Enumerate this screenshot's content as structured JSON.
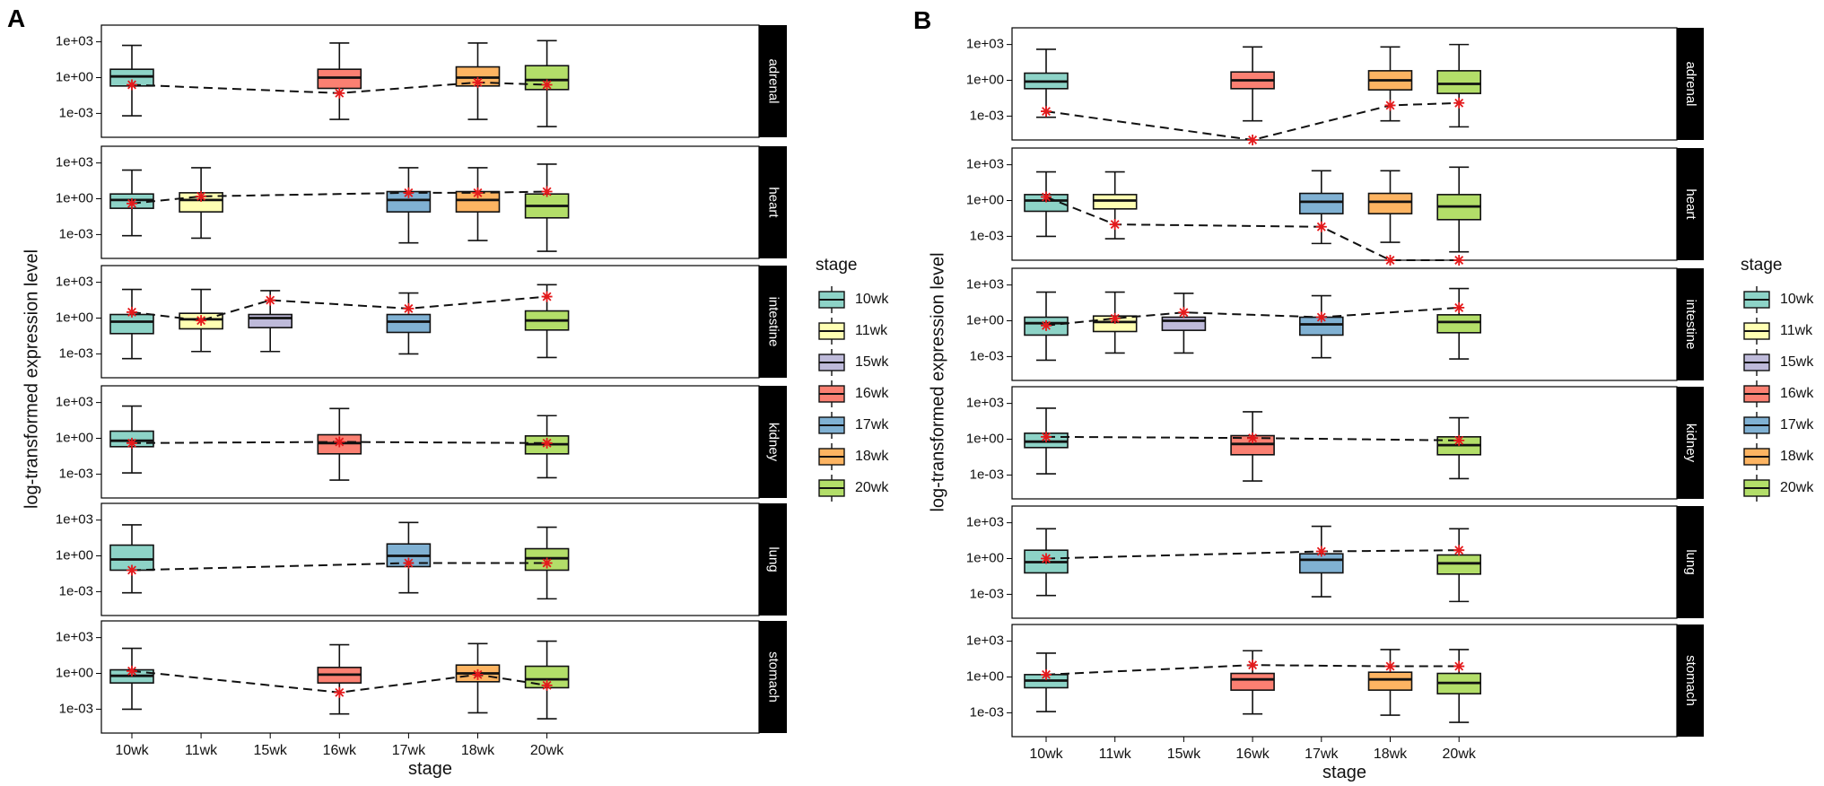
{
  "chart_data": {
    "type": "boxplot",
    "stage_levels": [
      "10wk",
      "11wk",
      "15wk",
      "16wk",
      "17wk",
      "18wk",
      "20wk"
    ],
    "colors": {
      "10wk": "#8dd3c7",
      "11wk": "#ffffb3",
      "15wk": "#bebada",
      "16wk": "#fb8072",
      "17wk": "#80b1d3",
      "18wk": "#fdb462",
      "20wk": "#b3de69"
    },
    "marker_color": "#e41a1c",
    "y_scale": "log10",
    "ylim_log10": [
      -5,
      4.4
    ],
    "y_ticks": [
      {
        "log": 3,
        "label": "1e+03"
      },
      {
        "log": 0,
        "label": "1e+00"
      },
      {
        "log": -3,
        "label": "1e-03"
      }
    ],
    "panels": [
      {
        "letter": "A",
        "xlabel": "stage",
        "ylabel": "log-transformed expression level",
        "legend_title": "stage",
        "facets": [
          {
            "name": "adrenal",
            "boxes": [
              {
                "stage": "10wk",
                "whislo": -3.2,
                "q1": -0.7,
                "med": 0.1,
                "q3": 0.7,
                "whishi": 2.7
              },
              {
                "stage": "16wk",
                "whislo": -3.5,
                "q1": -0.9,
                "med": 0.0,
                "q3": 0.7,
                "whishi": 2.9
              },
              {
                "stage": "18wk",
                "whislo": -3.5,
                "q1": -0.7,
                "med": 0.0,
                "q3": 0.9,
                "whishi": 2.9
              },
              {
                "stage": "20wk",
                "whislo": -4.1,
                "q1": -1.0,
                "med": -0.2,
                "q3": 1.0,
                "whishi": 3.1
              }
            ],
            "trend": [
              {
                "stage": "10wk",
                "value": -0.6
              },
              {
                "stage": "16wk",
                "value": -1.3
              },
              {
                "stage": "18wk",
                "value": -0.4
              },
              {
                "stage": "20wk",
                "value": -0.6
              }
            ]
          },
          {
            "name": "heart",
            "boxes": [
              {
                "stage": "10wk",
                "whislo": -3.1,
                "q1": -0.8,
                "med": -0.1,
                "q3": 0.4,
                "whishi": 2.4
              },
              {
                "stage": "11wk",
                "whislo": -3.3,
                "q1": -1.1,
                "med": -0.1,
                "q3": 0.5,
                "whishi": 2.6
              },
              {
                "stage": "17wk",
                "whislo": -3.7,
                "q1": -1.1,
                "med": -0.1,
                "q3": 0.6,
                "whishi": 2.6
              },
              {
                "stage": "18wk",
                "whislo": -3.5,
                "q1": -1.1,
                "med": -0.1,
                "q3": 0.6,
                "whishi": 2.6
              },
              {
                "stage": "20wk",
                "whislo": -4.4,
                "q1": -1.6,
                "med": -0.6,
                "q3": 0.4,
                "whishi": 2.9
              }
            ],
            "trend": [
              {
                "stage": "10wk",
                "value": -0.4
              },
              {
                "stage": "11wk",
                "value": 0.2
              },
              {
                "stage": "17wk",
                "value": 0.5
              },
              {
                "stage": "18wk",
                "value": 0.5
              },
              {
                "stage": "20wk",
                "value": 0.6
              }
            ]
          },
          {
            "name": "intestine",
            "boxes": [
              {
                "stage": "10wk",
                "whislo": -3.4,
                "q1": -1.3,
                "med": -0.3,
                "q3": 0.3,
                "whishi": 2.4
              },
              {
                "stage": "11wk",
                "whislo": -2.8,
                "q1": -0.9,
                "med": -0.1,
                "q3": 0.4,
                "whishi": 2.4
              },
              {
                "stage": "15wk",
                "whislo": -2.8,
                "q1": -0.8,
                "med": 0.0,
                "q3": 0.3,
                "whishi": 2.3
              },
              {
                "stage": "17wk",
                "whislo": -3.0,
                "q1": -1.2,
                "med": -0.3,
                "q3": 0.3,
                "whishi": 2.1
              },
              {
                "stage": "20wk",
                "whislo": -3.3,
                "q1": -1.0,
                "med": -0.2,
                "q3": 0.6,
                "whishi": 2.8
              }
            ],
            "trend": [
              {
                "stage": "10wk",
                "value": 0.5
              },
              {
                "stage": "11wk",
                "value": -0.2
              },
              {
                "stage": "15wk",
                "value": 1.5
              },
              {
                "stage": "17wk",
                "value": 0.8
              },
              {
                "stage": "20wk",
                "value": 1.8
              }
            ]
          },
          {
            "name": "kidney",
            "boxes": [
              {
                "stage": "10wk",
                "whislo": -2.9,
                "q1": -0.7,
                "med": -0.2,
                "q3": 0.6,
                "whishi": 2.7
              },
              {
                "stage": "16wk",
                "whislo": -3.5,
                "q1": -1.3,
                "med": -0.4,
                "q3": 0.3,
                "whishi": 2.5
              },
              {
                "stage": "20wk",
                "whislo": -3.3,
                "q1": -1.3,
                "med": -0.5,
                "q3": 0.2,
                "whishi": 1.9
              }
            ],
            "trend": [
              {
                "stage": "10wk",
                "value": -0.4
              },
              {
                "stage": "16wk",
                "value": -0.3
              },
              {
                "stage": "20wk",
                "value": -0.4
              }
            ]
          },
          {
            "name": "lung",
            "boxes": [
              {
                "stage": "10wk",
                "whislo": -3.1,
                "q1": -1.2,
                "med": -0.3,
                "q3": 0.9,
                "whishi": 2.6
              },
              {
                "stage": "17wk",
                "whislo": -3.1,
                "q1": -0.9,
                "med": 0.0,
                "q3": 1.0,
                "whishi": 2.8
              },
              {
                "stage": "20wk",
                "whislo": -3.6,
                "q1": -1.2,
                "med": -0.2,
                "q3": 0.6,
                "whishi": 2.4
              }
            ],
            "trend": [
              {
                "stage": "10wk",
                "value": -1.2
              },
              {
                "stage": "17wk",
                "value": -0.6
              },
              {
                "stage": "20wk",
                "value": -0.6
              }
            ]
          },
          {
            "name": "stomach",
            "boxes": [
              {
                "stage": "10wk",
                "whislo": -3.0,
                "q1": -0.8,
                "med": -0.2,
                "q3": 0.3,
                "whishi": 2.1
              },
              {
                "stage": "16wk",
                "whislo": -3.4,
                "q1": -0.8,
                "med": -0.1,
                "q3": 0.5,
                "whishi": 2.4
              },
              {
                "stage": "18wk",
                "whislo": -3.3,
                "q1": -0.7,
                "med": 0.0,
                "q3": 0.7,
                "whishi": 2.5
              },
              {
                "stage": "20wk",
                "whislo": -3.8,
                "q1": -1.2,
                "med": -0.5,
                "q3": 0.6,
                "whishi": 2.7
              }
            ],
            "trend": [
              {
                "stage": "10wk",
                "value": 0.2
              },
              {
                "stage": "16wk",
                "value": -1.6
              },
              {
                "stage": "18wk",
                "value": -0.1
              },
              {
                "stage": "20wk",
                "value": -1.0
              }
            ]
          }
        ]
      },
      {
        "letter": "B",
        "xlabel": "stage",
        "ylabel": "log-transformed expression level",
        "legend_title": "stage",
        "facets": [
          {
            "name": "adrenal",
            "boxes": [
              {
                "stage": "10wk",
                "whislo": -3.1,
                "q1": -0.7,
                "med": -0.1,
                "q3": 0.6,
                "whishi": 2.6
              },
              {
                "stage": "16wk",
                "whislo": -3.4,
                "q1": -0.7,
                "med": 0.0,
                "q3": 0.7,
                "whishi": 2.8
              },
              {
                "stage": "18wk",
                "whislo": -3.4,
                "q1": -0.8,
                "med": 0.0,
                "q3": 0.8,
                "whishi": 2.8
              },
              {
                "stage": "20wk",
                "whislo": -3.9,
                "q1": -1.1,
                "med": -0.3,
                "q3": 0.8,
                "whishi": 3.0
              }
            ],
            "trend": [
              {
                "stage": "10wk",
                "value": -2.6
              },
              {
                "stage": "16wk",
                "value": -5.0
              },
              {
                "stage": "18wk",
                "value": -2.1
              },
              {
                "stage": "20wk",
                "value": -1.9
              }
            ]
          },
          {
            "name": "heart",
            "boxes": [
              {
                "stage": "10wk",
                "whislo": -3.0,
                "q1": -0.9,
                "med": 0.0,
                "q3": 0.5,
                "whishi": 2.4
              },
              {
                "stage": "11wk",
                "whislo": -3.2,
                "q1": -0.7,
                "med": 0.0,
                "q3": 0.5,
                "whishi": 2.4
              },
              {
                "stage": "17wk",
                "whislo": -3.6,
                "q1": -1.1,
                "med": -0.1,
                "q3": 0.6,
                "whishi": 2.5
              },
              {
                "stage": "18wk",
                "whislo": -3.5,
                "q1": -1.1,
                "med": -0.1,
                "q3": 0.6,
                "whishi": 2.5
              },
              {
                "stage": "20wk",
                "whislo": -4.3,
                "q1": -1.6,
                "med": -0.5,
                "q3": 0.5,
                "whishi": 2.8
              }
            ],
            "trend": [
              {
                "stage": "10wk",
                "value": 0.3
              },
              {
                "stage": "11wk",
                "value": -2.0
              },
              {
                "stage": "17wk",
                "value": -2.2
              },
              {
                "stage": "18wk",
                "value": -5.0
              },
              {
                "stage": "20wk",
                "value": -5.0
              }
            ]
          },
          {
            "name": "intestine",
            "boxes": [
              {
                "stage": "10wk",
                "whislo": -3.3,
                "q1": -1.2,
                "med": -0.2,
                "q3": 0.3,
                "whishi": 2.4
              },
              {
                "stage": "11wk",
                "whislo": -2.7,
                "q1": -0.9,
                "med": -0.1,
                "q3": 0.4,
                "whishi": 2.4
              },
              {
                "stage": "15wk",
                "whislo": -2.7,
                "q1": -0.8,
                "med": 0.0,
                "q3": 0.3,
                "whishi": 2.3
              },
              {
                "stage": "17wk",
                "whislo": -3.1,
                "q1": -1.2,
                "med": -0.3,
                "q3": 0.3,
                "whishi": 2.1
              },
              {
                "stage": "20wk",
                "whislo": -3.2,
                "q1": -1.0,
                "med": -0.1,
                "q3": 0.5,
                "whishi": 2.7
              }
            ],
            "trend": [
              {
                "stage": "10wk",
                "value": -0.4
              },
              {
                "stage": "11wk",
                "value": 0.2
              },
              {
                "stage": "15wk",
                "value": 0.7
              },
              {
                "stage": "17wk",
                "value": 0.3
              },
              {
                "stage": "20wk",
                "value": 1.1
              }
            ]
          },
          {
            "name": "kidney",
            "boxes": [
              {
                "stage": "10wk",
                "whislo": -2.9,
                "q1": -0.7,
                "med": -0.2,
                "q3": 0.5,
                "whishi": 2.6
              },
              {
                "stage": "16wk",
                "whislo": -3.5,
                "q1": -1.3,
                "med": -0.4,
                "q3": 0.3,
                "whishi": 2.3
              },
              {
                "stage": "20wk",
                "whislo": -3.3,
                "q1": -1.3,
                "med": -0.5,
                "q3": 0.2,
                "whishi": 1.8
              }
            ],
            "trend": [
              {
                "stage": "10wk",
                "value": 0.2
              },
              {
                "stage": "16wk",
                "value": 0.1
              },
              {
                "stage": "20wk",
                "value": -0.1
              }
            ]
          },
          {
            "name": "lung",
            "boxes": [
              {
                "stage": "10wk",
                "whislo": -3.1,
                "q1": -1.2,
                "med": -0.3,
                "q3": 0.7,
                "whishi": 2.5
              },
              {
                "stage": "17wk",
                "whislo": -3.2,
                "q1": -1.2,
                "med": -0.1,
                "q3": 0.4,
                "whishi": 2.7
              },
              {
                "stage": "20wk",
                "whislo": -3.6,
                "q1": -1.3,
                "med": -0.4,
                "q3": 0.3,
                "whishi": 2.5
              }
            ],
            "trend": [
              {
                "stage": "10wk",
                "value": 0.0
              },
              {
                "stage": "17wk",
                "value": 0.6
              },
              {
                "stage": "20wk",
                "value": 0.7
              }
            ]
          },
          {
            "name": "stomach",
            "boxes": [
              {
                "stage": "10wk",
                "whislo": -2.9,
                "q1": -0.9,
                "med": -0.3,
                "q3": 0.2,
                "whishi": 2.0
              },
              {
                "stage": "16wk",
                "whislo": -3.1,
                "q1": -1.1,
                "med": -0.2,
                "q3": 0.3,
                "whishi": 2.2
              },
              {
                "stage": "18wk",
                "whislo": -3.2,
                "q1": -1.1,
                "med": -0.2,
                "q3": 0.4,
                "whishi": 2.3
              },
              {
                "stage": "20wk",
                "whislo": -3.8,
                "q1": -1.4,
                "med": -0.5,
                "q3": 0.3,
                "whishi": 2.3
              }
            ],
            "trend": [
              {
                "stage": "10wk",
                "value": 0.2
              },
              {
                "stage": "16wk",
                "value": 1.0
              },
              {
                "stage": "18wk",
                "value": 0.9
              },
              {
                "stage": "20wk",
                "value": 0.9
              }
            ]
          }
        ]
      }
    ]
  }
}
